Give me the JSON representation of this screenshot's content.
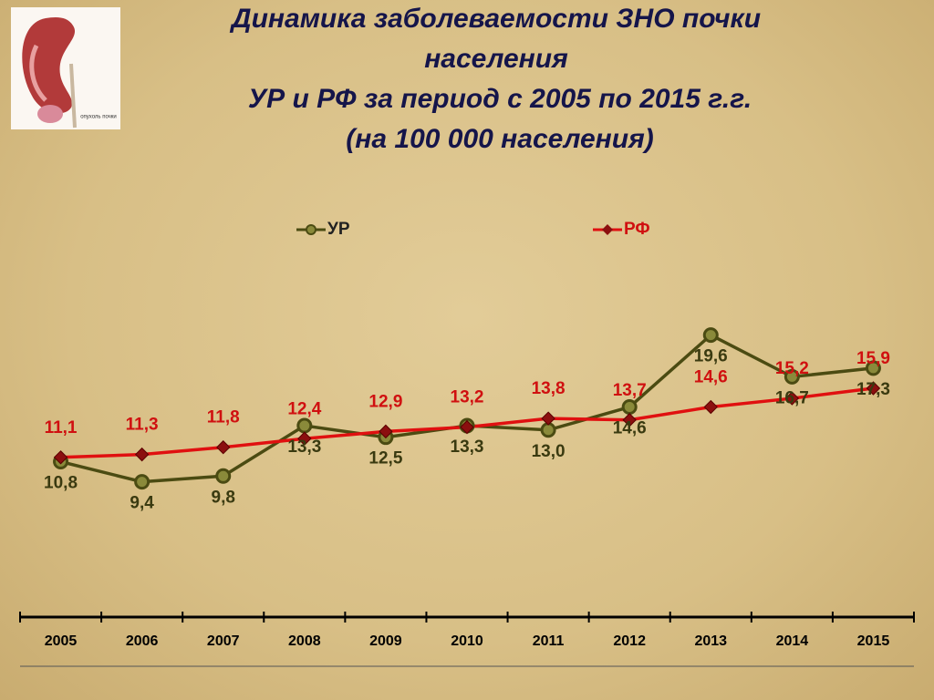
{
  "chart_data": {
    "type": "line",
    "title_lines": [
      "Динамика заболеваемости ЗНО почки",
      "населения",
      "УР и РФ за период с 2005 по 2015 г.г.",
      "(на 100 000 населения)"
    ],
    "image_caption": "опухоль почки",
    "categories": [
      "2005",
      "2006",
      "2007",
      "2008",
      "2009",
      "2010",
      "2011",
      "2012",
      "2013",
      "2014",
      "2015"
    ],
    "series": [
      {
        "name": "УР",
        "color": "#4b4b12",
        "marker": "circle",
        "values": [
          10.8,
          9.4,
          9.8,
          13.3,
          12.5,
          13.3,
          13.0,
          14.6,
          19.6,
          16.7,
          17.3
        ],
        "value_labels": [
          "10,8",
          "9,4",
          "9,8",
          "13,3",
          "12,5",
          "13,3",
          "13,0",
          "14,6",
          "19,6",
          "16,7",
          "17,3"
        ]
      },
      {
        "name": "РФ",
        "color": "#e01010",
        "marker": "diamond",
        "values": [
          11.1,
          11.3,
          11.8,
          12.4,
          12.9,
          13.2,
          13.8,
          13.7,
          14.6,
          15.2,
          15.9
        ],
        "value_labels": [
          "11,1",
          "11,3",
          "11,8",
          "12,4",
          "12,9",
          "13,2",
          "13,8",
          "13,7",
          "14,6",
          "15,2",
          "15,9"
        ]
      }
    ],
    "ylim": [
      0,
      28
    ]
  }
}
